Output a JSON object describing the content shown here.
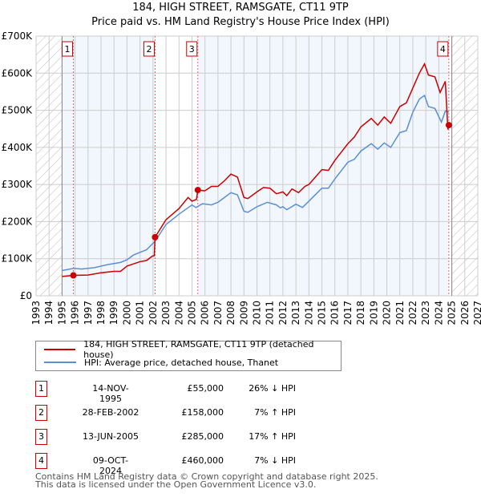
{
  "chart_data": {
    "type": "line",
    "title": "184, HIGH STREET, RAMSGATE, CT11 9TP",
    "subtitle": "Price paid vs. HM Land Registry's House Price Index (HPI)",
    "xlim": [
      1993,
      2027
    ],
    "ylim": [
      0,
      700000
    ],
    "x_ticks": [
      "1993",
      "1994",
      "1995",
      "1996",
      "1997",
      "1998",
      "1999",
      "2000",
      "2001",
      "2002",
      "2003",
      "2004",
      "2005",
      "2006",
      "2007",
      "2008",
      "2009",
      "2010",
      "2011",
      "2012",
      "2013",
      "2014",
      "2015",
      "2016",
      "2017",
      "2018",
      "2019",
      "2020",
      "2021",
      "2022",
      "2023",
      "2024",
      "2025",
      "2026",
      "2027"
    ],
    "y_ticks": [
      {
        "v": 0,
        "label": "£0"
      },
      {
        "v": 100000,
        "label": "£100K"
      },
      {
        "v": 200000,
        "label": "£200K"
      },
      {
        "v": 300000,
        "label": "£300K"
      },
      {
        "v": 400000,
        "label": "£400K"
      },
      {
        "v": 500000,
        "label": "£500K"
      },
      {
        "v": 600000,
        "label": "£600K"
      },
      {
        "v": 700000,
        "label": "£700K"
      }
    ],
    "grid": true,
    "data_range": [
      1995,
      2025
    ],
    "series": [
      {
        "name": "184, HIGH STREET, RAMSGATE, CT11 9TP (detached house)",
        "color": "#cc0000",
        "points": [
          [
            1995,
            52000
          ],
          [
            1995.87,
            55000
          ],
          [
            1997,
            56000
          ],
          [
            1998,
            62000
          ],
          [
            1999,
            66000
          ],
          [
            1999.5,
            66000
          ],
          [
            2000,
            80000
          ],
          [
            2001,
            92000
          ],
          [
            2001.5,
            95000
          ],
          [
            2001.95,
            107000
          ],
          [
            2002.1,
            108000
          ],
          [
            2002.16,
            158000
          ],
          [
            2003,
            205000
          ],
          [
            2004,
            235000
          ],
          [
            2004.7,
            265000
          ],
          [
            2005,
            255000
          ],
          [
            2005.35,
            260000
          ],
          [
            2005.45,
            285000
          ],
          [
            2006,
            283000
          ],
          [
            2006.5,
            295000
          ],
          [
            2007,
            295000
          ],
          [
            2007.5,
            310000
          ],
          [
            2008,
            328000
          ],
          [
            2008.5,
            320000
          ],
          [
            2009,
            265000
          ],
          [
            2009.3,
            262000
          ],
          [
            2010,
            280000
          ],
          [
            2010.5,
            292000
          ],
          [
            2011,
            290000
          ],
          [
            2011.5,
            275000
          ],
          [
            2012,
            280000
          ],
          [
            2012.3,
            270000
          ],
          [
            2012.7,
            288000
          ],
          [
            2013.2,
            278000
          ],
          [
            2013.7,
            295000
          ],
          [
            2014,
            300000
          ],
          [
            2015,
            340000
          ],
          [
            2015.5,
            338000
          ],
          [
            2016,
            365000
          ],
          [
            2017,
            410000
          ],
          [
            2017.5,
            428000
          ],
          [
            2018,
            455000
          ],
          [
            2018.8,
            478000
          ],
          [
            2019.3,
            460000
          ],
          [
            2019.8,
            482000
          ],
          [
            2020.3,
            465000
          ],
          [
            2021,
            510000
          ],
          [
            2021.5,
            520000
          ],
          [
            2022,
            560000
          ],
          [
            2022.5,
            600000
          ],
          [
            2022.9,
            625000
          ],
          [
            2023.2,
            595000
          ],
          [
            2023.7,
            590000
          ],
          [
            2024.1,
            548000
          ],
          [
            2024.5,
            578000
          ],
          [
            2024.7,
            448000
          ],
          [
            2024.77,
            460000
          ]
        ]
      },
      {
        "name": "HPI: Average price, detached house, Thanet",
        "color": "#5b8fd4",
        "points": [
          [
            1995,
            68000
          ],
          [
            1995.9,
            74000
          ],
          [
            1996.5,
            72000
          ],
          [
            1997.5,
            76000
          ],
          [
            1998.5,
            84000
          ],
          [
            1999.5,
            90000
          ],
          [
            2000,
            97000
          ],
          [
            2000.5,
            110000
          ],
          [
            2001.5,
            124000
          ],
          [
            2002.16,
            147000
          ],
          [
            2003,
            192000
          ],
          [
            2004,
            220000
          ],
          [
            2005,
            245000
          ],
          [
            2005.3,
            238000
          ],
          [
            2005.8,
            248000
          ],
          [
            2006.5,
            245000
          ],
          [
            2007,
            252000
          ],
          [
            2007.5,
            265000
          ],
          [
            2008,
            278000
          ],
          [
            2008.5,
            272000
          ],
          [
            2009,
            228000
          ],
          [
            2009.3,
            225000
          ],
          [
            2010,
            240000
          ],
          [
            2010.8,
            252000
          ],
          [
            2011.5,
            245000
          ],
          [
            2011.8,
            237000
          ],
          [
            2012,
            240000
          ],
          [
            2012.3,
            232000
          ],
          [
            2013,
            247000
          ],
          [
            2013.5,
            238000
          ],
          [
            2014,
            255000
          ],
          [
            2015,
            290000
          ],
          [
            2015.5,
            290000
          ],
          [
            2016,
            315000
          ],
          [
            2017,
            360000
          ],
          [
            2017.5,
            368000
          ],
          [
            2018,
            390000
          ],
          [
            2018.8,
            410000
          ],
          [
            2019.3,
            395000
          ],
          [
            2019.8,
            412000
          ],
          [
            2020.3,
            400000
          ],
          [
            2021,
            440000
          ],
          [
            2021.5,
            445000
          ],
          [
            2022,
            495000
          ],
          [
            2022.5,
            530000
          ],
          [
            2022.9,
            540000
          ],
          [
            2023.2,
            510000
          ],
          [
            2023.7,
            505000
          ],
          [
            2024.2,
            468000
          ],
          [
            2024.5,
            498000
          ],
          [
            2024.77,
            495000
          ]
        ]
      }
    ],
    "sales": [
      {
        "n": "1",
        "x": 1995.87,
        "y": 55000
      },
      {
        "n": "2",
        "x": 2002.16,
        "y": 158000
      },
      {
        "n": "3",
        "x": 2005.45,
        "y": 285000
      },
      {
        "n": "4",
        "x": 2024.77,
        "y": 460000
      }
    ]
  },
  "legend": {
    "red_label": "184, HIGH STREET, RAMSGATE, CT11 9TP (detached house)",
    "blue_label": "HPI: Average price, detached house, Thanet"
  },
  "table": [
    {
      "n": "1",
      "date": "14-NOV-1995",
      "price": "£55,000",
      "hpi": "26% ↓ HPI"
    },
    {
      "n": "2",
      "date": "28-FEB-2002",
      "price": "£158,000",
      "hpi": "7% ↑ HPI"
    },
    {
      "n": "3",
      "date": "13-JUN-2005",
      "price": "£285,000",
      "hpi": "17% ↑ HPI"
    },
    {
      "n": "4",
      "date": "09-OCT-2024",
      "price": "£460,000",
      "hpi": "7% ↓ HPI"
    }
  ],
  "footer": {
    "line1": "Contains HM Land Registry data © Crown copyright and database right 2025.",
    "line2": "This data is licensed under the Open Government Licence v3.0."
  }
}
